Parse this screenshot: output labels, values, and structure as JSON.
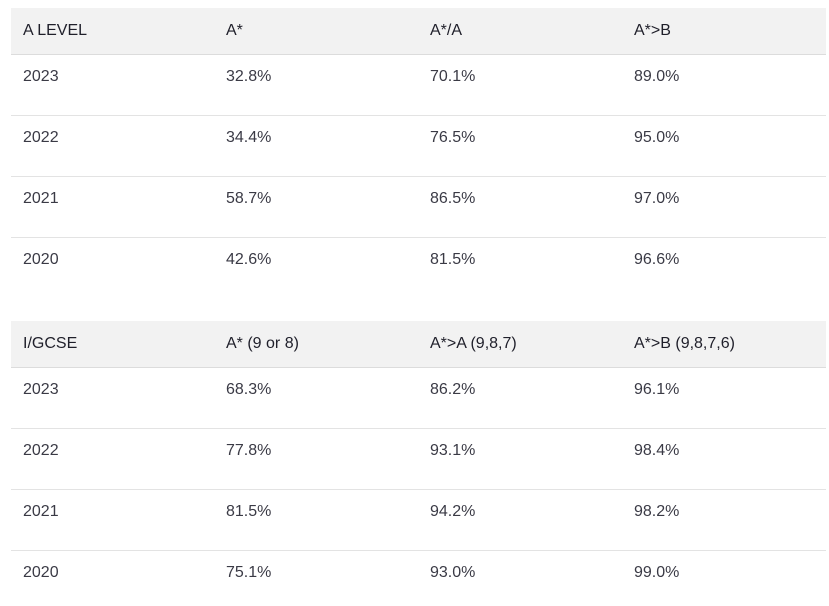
{
  "tables": [
    {
      "headers": [
        "A LEVEL",
        "A*",
        "A*/A",
        "A*>B"
      ],
      "rows": [
        [
          "2023",
          "32.8%",
          "70.1%",
          "89.0%"
        ],
        [
          "2022",
          "34.4%",
          "76.5%",
          "95.0%"
        ],
        [
          "2021",
          "58.7%",
          "86.5%",
          "97.0%"
        ],
        [
          "2020",
          "42.6%",
          "81.5%",
          "96.6%"
        ]
      ]
    },
    {
      "headers": [
        "I/GCSE",
        "A* (9 or 8)",
        "A*>A (9,8,7)",
        "A*>B (9,8,7,6)"
      ],
      "rows": [
        [
          "2023",
          "68.3%",
          "86.2%",
          "96.1%"
        ],
        [
          "2022",
          "77.8%",
          "93.1%",
          "98.4%"
        ],
        [
          "2021",
          "81.5%",
          "94.2%",
          "98.2%"
        ],
        [
          "2020",
          "75.1%",
          "93.0%",
          "99.0%"
        ]
      ]
    }
  ]
}
